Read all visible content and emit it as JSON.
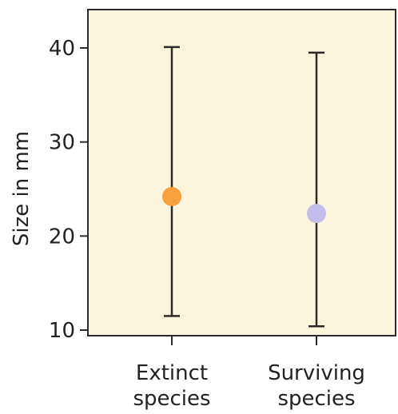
{
  "chart_data": {
    "type": "scatter",
    "title": "",
    "xlabel": "",
    "ylabel": "Size in mm",
    "ylim": [
      10,
      44
    ],
    "yticks": [
      10,
      20,
      30,
      40
    ],
    "categories": [
      {
        "lines": [
          "Extinct",
          "species"
        ],
        "mean": 24.2,
        "low": 11.5,
        "high": 40.1,
        "color": "#F7A03C"
      },
      {
        "lines": [
          "Surviving",
          "species"
        ],
        "mean": 22.4,
        "low": 10.4,
        "high": 39.5,
        "color": "#C2BDEA"
      }
    ],
    "grid": false,
    "plot_background": "#FCF5DE",
    "line_color": "#2b2b2b"
  }
}
